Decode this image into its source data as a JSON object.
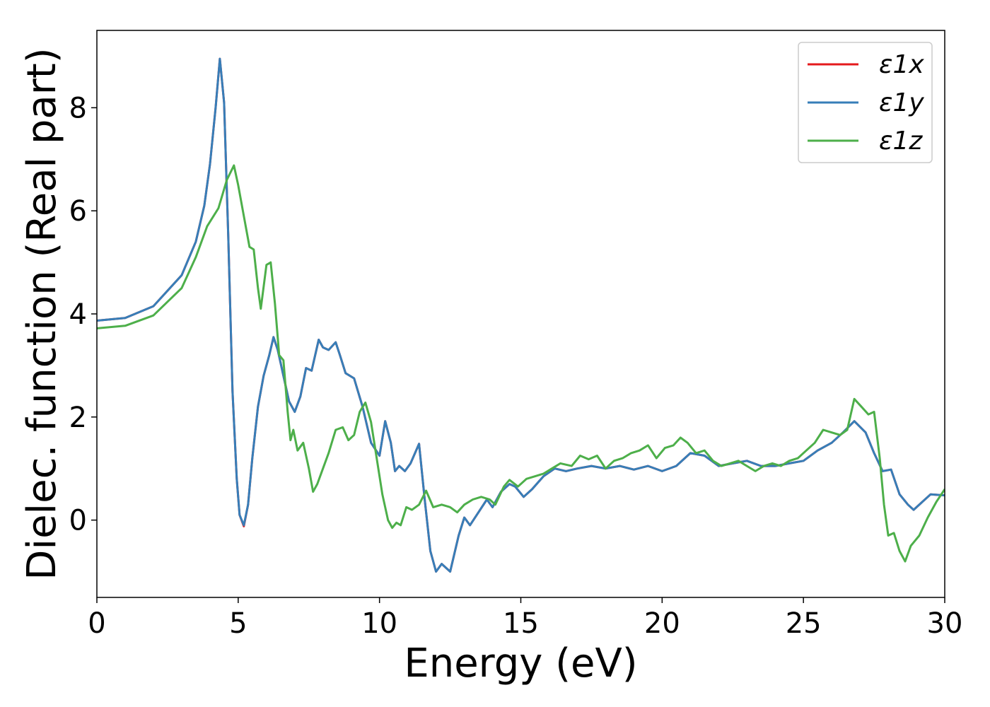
{
  "chart_data": {
    "type": "line",
    "xlabel": "Energy (eV)",
    "ylabel": "Dielec. function (Real part)",
    "xlim": [
      0,
      30
    ],
    "ylim": [
      -1.5,
      9.5
    ],
    "xticks": [
      0,
      5,
      10,
      15,
      20,
      25,
      30
    ],
    "yticks": [
      0,
      2,
      4,
      6,
      8
    ],
    "grid": false,
    "legend_position": "top-right",
    "series": [
      {
        "name": "ε1x",
        "color": "#e41a1c",
        "points": [
          [
            0,
            3.87
          ],
          [
            1,
            3.92
          ],
          [
            2,
            4.15
          ],
          [
            3,
            4.75
          ],
          [
            3.5,
            5.4
          ],
          [
            3.8,
            6.1
          ],
          [
            4.0,
            6.9
          ],
          [
            4.2,
            8.0
          ],
          [
            4.35,
            8.95
          ],
          [
            4.5,
            8.1
          ],
          [
            4.65,
            5.5
          ],
          [
            4.8,
            2.5
          ],
          [
            4.95,
            0.8
          ],
          [
            5.05,
            0.1
          ],
          [
            5.2,
            -0.12
          ],
          [
            5.35,
            0.3
          ],
          [
            5.5,
            1.2
          ],
          [
            5.7,
            2.2
          ],
          [
            5.9,
            2.8
          ],
          [
            6.1,
            3.2
          ],
          [
            6.25,
            3.55
          ],
          [
            6.4,
            3.3
          ],
          [
            6.6,
            2.8
          ],
          [
            6.8,
            2.3
          ],
          [
            7.0,
            2.1
          ],
          [
            7.2,
            2.4
          ],
          [
            7.4,
            2.95
          ],
          [
            7.6,
            2.9
          ],
          [
            7.85,
            3.5
          ],
          [
            8.0,
            3.35
          ],
          [
            8.2,
            3.3
          ],
          [
            8.45,
            3.45
          ],
          [
            8.6,
            3.2
          ],
          [
            8.8,
            2.85
          ],
          [
            9.1,
            2.75
          ],
          [
            9.4,
            2.2
          ],
          [
            9.7,
            1.5
          ],
          [
            10.0,
            1.25
          ],
          [
            10.2,
            1.92
          ],
          [
            10.4,
            1.5
          ],
          [
            10.55,
            0.95
          ],
          [
            10.7,
            1.05
          ],
          [
            10.9,
            0.95
          ],
          [
            11.1,
            1.1
          ],
          [
            11.4,
            1.48
          ],
          [
            11.6,
            0.4
          ],
          [
            11.8,
            -0.6
          ],
          [
            12.0,
            -1.0
          ],
          [
            12.2,
            -0.85
          ],
          [
            12.5,
            -1.0
          ],
          [
            12.8,
            -0.3
          ],
          [
            13.0,
            0.05
          ],
          [
            13.2,
            -0.1
          ],
          [
            13.5,
            0.15
          ],
          [
            13.8,
            0.4
          ],
          [
            14.0,
            0.25
          ],
          [
            14.3,
            0.55
          ],
          [
            14.6,
            0.7
          ],
          [
            14.8,
            0.65
          ],
          [
            15.1,
            0.45
          ],
          [
            15.4,
            0.6
          ],
          [
            15.8,
            0.85
          ],
          [
            16.2,
            1.0
          ],
          [
            16.6,
            0.95
          ],
          [
            17.0,
            1.0
          ],
          [
            17.5,
            1.05
          ],
          [
            18.0,
            1.0
          ],
          [
            18.5,
            1.05
          ],
          [
            19.0,
            0.98
          ],
          [
            19.5,
            1.05
          ],
          [
            20.0,
            0.95
          ],
          [
            20.5,
            1.05
          ],
          [
            21.0,
            1.3
          ],
          [
            21.5,
            1.25
          ],
          [
            22.0,
            1.05
          ],
          [
            22.5,
            1.1
          ],
          [
            23.0,
            1.15
          ],
          [
            23.5,
            1.05
          ],
          [
            24.0,
            1.05
          ],
          [
            24.5,
            1.1
          ],
          [
            25.0,
            1.15
          ],
          [
            25.5,
            1.35
          ],
          [
            26.0,
            1.5
          ],
          [
            26.4,
            1.7
          ],
          [
            26.8,
            1.92
          ],
          [
            27.2,
            1.7
          ],
          [
            27.5,
            1.3
          ],
          [
            27.8,
            0.95
          ],
          [
            28.1,
            0.98
          ],
          [
            28.4,
            0.5
          ],
          [
            28.7,
            0.3
          ],
          [
            28.9,
            0.2
          ],
          [
            29.2,
            0.35
          ],
          [
            29.5,
            0.5
          ],
          [
            30.0,
            0.48
          ]
        ]
      },
      {
        "name": "ε1y",
        "color": "#377eb8",
        "points": [
          [
            0,
            3.87
          ],
          [
            1,
            3.92
          ],
          [
            2,
            4.15
          ],
          [
            3,
            4.75
          ],
          [
            3.5,
            5.4
          ],
          [
            3.8,
            6.1
          ],
          [
            4.0,
            6.9
          ],
          [
            4.2,
            8.0
          ],
          [
            4.35,
            8.95
          ],
          [
            4.5,
            8.1
          ],
          [
            4.65,
            5.5
          ],
          [
            4.8,
            2.5
          ],
          [
            4.95,
            0.8
          ],
          [
            5.05,
            0.1
          ],
          [
            5.2,
            -0.1
          ],
          [
            5.35,
            0.3
          ],
          [
            5.5,
            1.2
          ],
          [
            5.7,
            2.2
          ],
          [
            5.9,
            2.8
          ],
          [
            6.1,
            3.2
          ],
          [
            6.25,
            3.55
          ],
          [
            6.4,
            3.3
          ],
          [
            6.6,
            2.8
          ],
          [
            6.8,
            2.3
          ],
          [
            7.0,
            2.1
          ],
          [
            7.2,
            2.4
          ],
          [
            7.4,
            2.95
          ],
          [
            7.6,
            2.9
          ],
          [
            7.85,
            3.5
          ],
          [
            8.0,
            3.35
          ],
          [
            8.2,
            3.3
          ],
          [
            8.45,
            3.45
          ],
          [
            8.6,
            3.2
          ],
          [
            8.8,
            2.85
          ],
          [
            9.1,
            2.75
          ],
          [
            9.4,
            2.2
          ],
          [
            9.7,
            1.5
          ],
          [
            10.0,
            1.25
          ],
          [
            10.2,
            1.92
          ],
          [
            10.4,
            1.5
          ],
          [
            10.55,
            0.95
          ],
          [
            10.7,
            1.05
          ],
          [
            10.9,
            0.95
          ],
          [
            11.1,
            1.1
          ],
          [
            11.4,
            1.48
          ],
          [
            11.6,
            0.4
          ],
          [
            11.8,
            -0.6
          ],
          [
            12.0,
            -1.0
          ],
          [
            12.2,
            -0.85
          ],
          [
            12.5,
            -1.0
          ],
          [
            12.8,
            -0.3
          ],
          [
            13.0,
            0.05
          ],
          [
            13.2,
            -0.1
          ],
          [
            13.5,
            0.15
          ],
          [
            13.8,
            0.4
          ],
          [
            14.0,
            0.25
          ],
          [
            14.3,
            0.55
          ],
          [
            14.6,
            0.7
          ],
          [
            14.8,
            0.65
          ],
          [
            15.1,
            0.45
          ],
          [
            15.4,
            0.6
          ],
          [
            15.8,
            0.85
          ],
          [
            16.2,
            1.0
          ],
          [
            16.6,
            0.95
          ],
          [
            17.0,
            1.0
          ],
          [
            17.5,
            1.05
          ],
          [
            18.0,
            1.0
          ],
          [
            18.5,
            1.05
          ],
          [
            19.0,
            0.98
          ],
          [
            19.5,
            1.05
          ],
          [
            20.0,
            0.95
          ],
          [
            20.5,
            1.05
          ],
          [
            21.0,
            1.3
          ],
          [
            21.5,
            1.25
          ],
          [
            22.0,
            1.05
          ],
          [
            22.5,
            1.1
          ],
          [
            23.0,
            1.15
          ],
          [
            23.5,
            1.05
          ],
          [
            24.0,
            1.05
          ],
          [
            24.5,
            1.1
          ],
          [
            25.0,
            1.15
          ],
          [
            25.5,
            1.35
          ],
          [
            26.0,
            1.5
          ],
          [
            26.4,
            1.7
          ],
          [
            26.8,
            1.92
          ],
          [
            27.2,
            1.7
          ],
          [
            27.5,
            1.3
          ],
          [
            27.8,
            0.95
          ],
          [
            28.1,
            0.98
          ],
          [
            28.4,
            0.5
          ],
          [
            28.7,
            0.3
          ],
          [
            28.9,
            0.2
          ],
          [
            29.2,
            0.35
          ],
          [
            29.5,
            0.5
          ],
          [
            30.0,
            0.48
          ]
        ]
      },
      {
        "name": "ε1z",
        "color": "#4daf4a",
        "points": [
          [
            0,
            3.72
          ],
          [
            1,
            3.77
          ],
          [
            2,
            3.97
          ],
          [
            3,
            4.5
          ],
          [
            3.5,
            5.1
          ],
          [
            3.9,
            5.7
          ],
          [
            4.3,
            6.05
          ],
          [
            4.6,
            6.6
          ],
          [
            4.85,
            6.88
          ],
          [
            5.0,
            6.5
          ],
          [
            5.2,
            5.9
          ],
          [
            5.4,
            5.3
          ],
          [
            5.55,
            5.25
          ],
          [
            5.7,
            4.5
          ],
          [
            5.8,
            4.1
          ],
          [
            6.0,
            4.95
          ],
          [
            6.15,
            5.0
          ],
          [
            6.3,
            4.2
          ],
          [
            6.45,
            3.2
          ],
          [
            6.6,
            3.1
          ],
          [
            6.75,
            2.1
          ],
          [
            6.85,
            1.55
          ],
          [
            6.95,
            1.75
          ],
          [
            7.1,
            1.35
          ],
          [
            7.3,
            1.5
          ],
          [
            7.5,
            1.0
          ],
          [
            7.65,
            0.55
          ],
          [
            7.8,
            0.7
          ],
          [
            8.0,
            1.0
          ],
          [
            8.2,
            1.3
          ],
          [
            8.45,
            1.75
          ],
          [
            8.7,
            1.8
          ],
          [
            8.9,
            1.55
          ],
          [
            9.1,
            1.65
          ],
          [
            9.3,
            2.1
          ],
          [
            9.5,
            2.28
          ],
          [
            9.7,
            1.9
          ],
          [
            9.9,
            1.2
          ],
          [
            10.1,
            0.5
          ],
          [
            10.3,
            0.0
          ],
          [
            10.45,
            -0.15
          ],
          [
            10.6,
            -0.05
          ],
          [
            10.75,
            -0.1
          ],
          [
            10.95,
            0.25
          ],
          [
            11.15,
            0.2
          ],
          [
            11.4,
            0.3
          ],
          [
            11.65,
            0.57
          ],
          [
            11.9,
            0.25
          ],
          [
            12.2,
            0.3
          ],
          [
            12.5,
            0.25
          ],
          [
            12.75,
            0.15
          ],
          [
            13.0,
            0.3
          ],
          [
            13.3,
            0.4
          ],
          [
            13.6,
            0.45
          ],
          [
            13.9,
            0.4
          ],
          [
            14.1,
            0.3
          ],
          [
            14.4,
            0.65
          ],
          [
            14.6,
            0.78
          ],
          [
            14.9,
            0.65
          ],
          [
            15.2,
            0.8
          ],
          [
            15.5,
            0.85
          ],
          [
            15.8,
            0.9
          ],
          [
            16.1,
            1.0
          ],
          [
            16.4,
            1.1
          ],
          [
            16.8,
            1.05
          ],
          [
            17.1,
            1.25
          ],
          [
            17.4,
            1.18
          ],
          [
            17.7,
            1.25
          ],
          [
            18.0,
            1.0
          ],
          [
            18.3,
            1.15
          ],
          [
            18.6,
            1.2
          ],
          [
            18.9,
            1.3
          ],
          [
            19.2,
            1.35
          ],
          [
            19.5,
            1.45
          ],
          [
            19.8,
            1.2
          ],
          [
            20.1,
            1.4
          ],
          [
            20.4,
            1.45
          ],
          [
            20.65,
            1.6
          ],
          [
            20.9,
            1.5
          ],
          [
            21.2,
            1.3
          ],
          [
            21.5,
            1.35
          ],
          [
            21.8,
            1.15
          ],
          [
            22.1,
            1.05
          ],
          [
            22.4,
            1.1
          ],
          [
            22.7,
            1.15
          ],
          [
            23.0,
            1.05
          ],
          [
            23.3,
            0.95
          ],
          [
            23.6,
            1.05
          ],
          [
            23.9,
            1.1
          ],
          [
            24.2,
            1.05
          ],
          [
            24.5,
            1.15
          ],
          [
            24.8,
            1.2
          ],
          [
            25.1,
            1.35
          ],
          [
            25.4,
            1.5
          ],
          [
            25.7,
            1.75
          ],
          [
            26.0,
            1.7
          ],
          [
            26.3,
            1.65
          ],
          [
            26.55,
            1.75
          ],
          [
            26.8,
            2.35
          ],
          [
            27.05,
            2.2
          ],
          [
            27.3,
            2.05
          ],
          [
            27.5,
            2.1
          ],
          [
            27.7,
            1.2
          ],
          [
            27.85,
            0.3
          ],
          [
            28.0,
            -0.3
          ],
          [
            28.2,
            -0.25
          ],
          [
            28.4,
            -0.6
          ],
          [
            28.6,
            -0.8
          ],
          [
            28.8,
            -0.5
          ],
          [
            29.1,
            -0.3
          ],
          [
            29.4,
            0.05
          ],
          [
            29.7,
            0.35
          ],
          [
            30.0,
            0.6
          ]
        ]
      }
    ]
  }
}
